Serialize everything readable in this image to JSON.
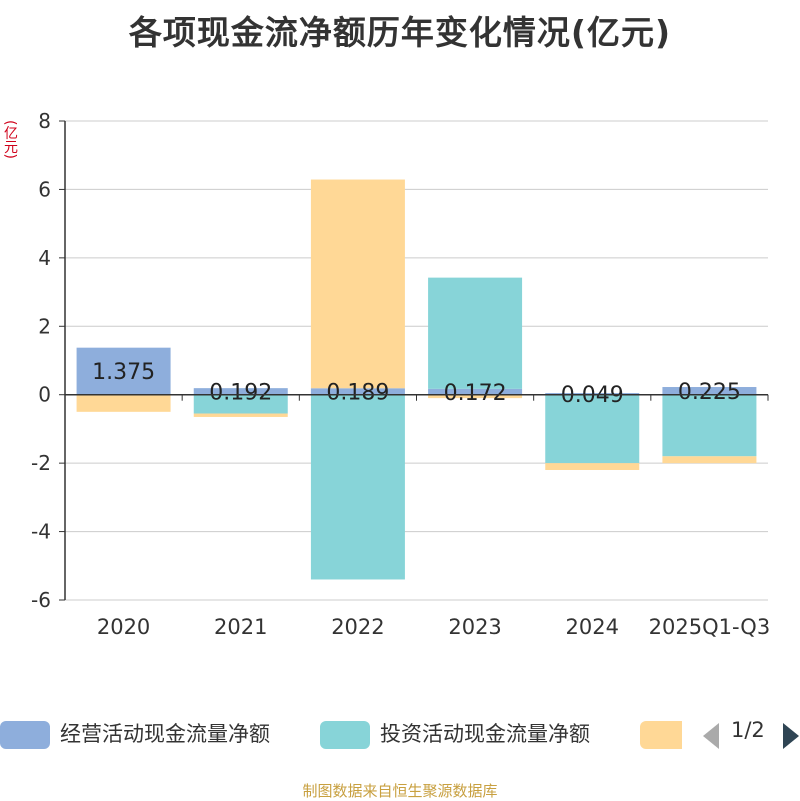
{
  "title": "各项现金流净额历年变化情况(亿元)",
  "unit": "(亿元)",
  "source": "制图数据来自恒生聚源数据库",
  "legend": {
    "items": [
      {
        "name": "经营活动现金流量净额",
        "color": "#8eaedc"
      },
      {
        "name": "投资活动现金流量净额",
        "color": "#87d4d8"
      },
      {
        "name": "",
        "color": "#ffd896"
      }
    ],
    "page": "1/2"
  },
  "chart_data": {
    "type": "bar",
    "stacked": true,
    "categories": [
      "2020",
      "2021",
      "2022",
      "2023",
      "2024",
      "2025Q1-Q3"
    ],
    "ylim": [
      -6,
      8
    ],
    "yticks": [
      -6,
      -4,
      -2,
      0,
      2,
      4,
      6,
      8
    ],
    "grid": true,
    "legend_position": "bottom",
    "series": [
      {
        "name": "经营活动现金流量净额",
        "color": "#8eaedc",
        "values": [
          1.375,
          0.192,
          0.189,
          0.172,
          0.049,
          0.225
        ],
        "labels": [
          "1.375",
          "0.192",
          "0.189",
          "0.172",
          "0.049",
          "0.225"
        ]
      },
      {
        "name": "投资活动现金流量净额",
        "color": "#87d4d8",
        "values": [
          0,
          -0.55,
          -5.4,
          3.25,
          -2.0,
          -1.8
        ]
      },
      {
        "color": "#ffd896",
        "values": [
          -0.5,
          -0.1,
          6.1,
          -0.1,
          -0.2,
          -0.2
        ]
      }
    ]
  }
}
